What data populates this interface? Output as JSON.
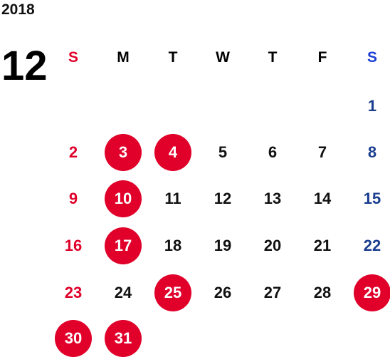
{
  "calendar": {
    "year": "2018",
    "month": "12",
    "weekdays": [
      "S",
      "M",
      "T",
      "W",
      "T",
      "F",
      "S"
    ],
    "weeks": [
      [
        null,
        null,
        null,
        null,
        null,
        null,
        {
          "day": "1",
          "type": "sat"
        }
      ],
      [
        {
          "day": "2",
          "type": "sun"
        },
        {
          "day": "3",
          "type": "holiday"
        },
        {
          "day": "4",
          "type": "holiday"
        },
        {
          "day": "5"
        },
        {
          "day": "6"
        },
        {
          "day": "7"
        },
        {
          "day": "8",
          "type": "sat"
        }
      ],
      [
        {
          "day": "9",
          "type": "sun"
        },
        {
          "day": "10",
          "type": "holiday"
        },
        {
          "day": "11"
        },
        {
          "day": "12"
        },
        {
          "day": "13"
        },
        {
          "day": "14"
        },
        {
          "day": "15",
          "type": "sat"
        }
      ],
      [
        {
          "day": "16",
          "type": "sun"
        },
        {
          "day": "17",
          "type": "holiday"
        },
        {
          "day": "18"
        },
        {
          "day": "19"
        },
        {
          "day": "20"
        },
        {
          "day": "21"
        },
        {
          "day": "22",
          "type": "sat"
        }
      ],
      [
        {
          "day": "23",
          "type": "sun"
        },
        {
          "day": "24"
        },
        {
          "day": "25",
          "type": "holiday"
        },
        {
          "day": "26"
        },
        {
          "day": "27"
        },
        {
          "day": "28"
        },
        {
          "day": "29",
          "type": "holiday"
        }
      ],
      [
        {
          "day": "30",
          "type": "holiday"
        },
        {
          "day": "31",
          "type": "holiday"
        },
        null,
        null,
        null,
        null,
        null
      ]
    ]
  },
  "colors": {
    "holiday_circle": "#e0002a",
    "sunday_text": "#e0002a",
    "saturday_text": "#1a3d8f",
    "weekday_text": "#111111"
  }
}
